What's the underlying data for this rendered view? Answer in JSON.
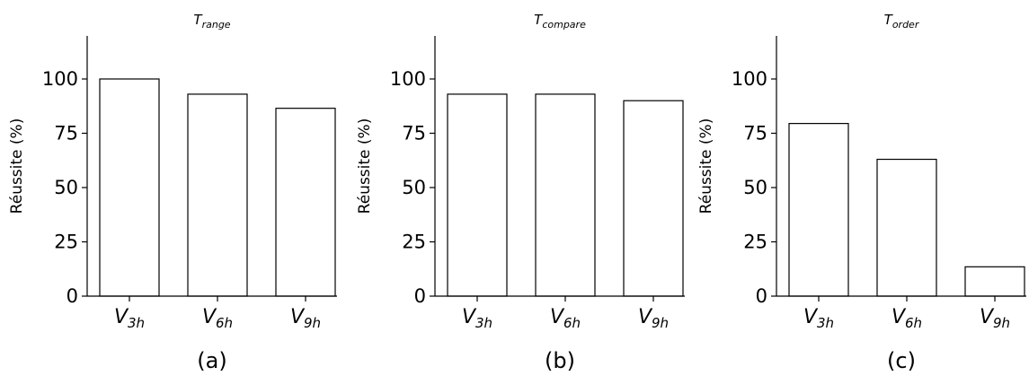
{
  "chart_data": [
    {
      "type": "bar",
      "title": {
        "main": "T",
        "sub": "range"
      },
      "ylabel": "Réussite (%)",
      "ylim": [
        0,
        120
      ],
      "yticks": [
        "0",
        "25",
        "50",
        "75",
        "100"
      ],
      "categories": [
        {
          "main": "V",
          "sub": "3h"
        },
        {
          "main": "V",
          "sub": "6h"
        },
        {
          "main": "V",
          "sub": "9h"
        }
      ],
      "values": [
        100,
        93,
        86.5
      ],
      "panel_label": "(a)",
      "bar_fill": "#ffffff",
      "bar_edge": "#000000"
    },
    {
      "type": "bar",
      "title": {
        "main": "T",
        "sub": "compare"
      },
      "ylabel": "Réussite (%)",
      "ylim": [
        0,
        120
      ],
      "yticks": [
        "0",
        "25",
        "50",
        "75",
        "100"
      ],
      "categories": [
        {
          "main": "V",
          "sub": "3h"
        },
        {
          "main": "V",
          "sub": "6h"
        },
        {
          "main": "V",
          "sub": "9h"
        }
      ],
      "values": [
        93,
        93,
        90
      ],
      "panel_label": "(b)",
      "bar_fill": "#ffffff",
      "bar_edge": "#000000"
    },
    {
      "type": "bar",
      "title": {
        "main": "T",
        "sub": "order"
      },
      "ylabel": "Réussite (%)",
      "ylim": [
        0,
        120
      ],
      "yticks": [
        "0",
        "25",
        "50",
        "75",
        "100"
      ],
      "categories": [
        {
          "main": "V",
          "sub": "3h"
        },
        {
          "main": "V",
          "sub": "6h"
        },
        {
          "main": "V",
          "sub": "9h"
        }
      ],
      "values": [
        79.5,
        63,
        13.5
      ],
      "panel_label": "(c)",
      "bar_fill": "#ffffff",
      "bar_edge": "#000000"
    }
  ]
}
